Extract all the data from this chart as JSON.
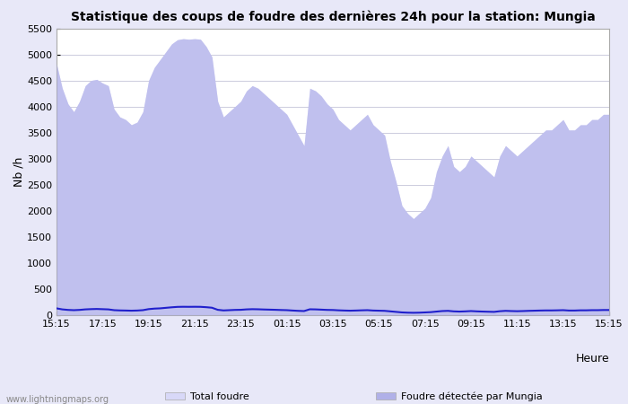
{
  "title": "Statistique des coups de foudre des dernières 24h pour la station: Mungia",
  "ylabel": "Nb /h",
  "xlabel": "Heure",
  "watermark": "www.lightningmaps.org",
  "ylim": [
    0,
    5500
  ],
  "yticks": [
    0,
    500,
    1000,
    1500,
    2000,
    2500,
    3000,
    3500,
    4000,
    4500,
    5000,
    5500
  ],
  "xtick_labels": [
    "15:15",
    "17:15",
    "19:15",
    "21:15",
    "23:15",
    "01:15",
    "03:15",
    "05:15",
    "07:15",
    "09:15",
    "11:15",
    "13:15",
    "15:15"
  ],
  "bg_color": "#e8e8f8",
  "plot_bg_color": "#ffffff",
  "grid_color": "#ccccdd",
  "fill_total_color": "#d8d8f8",
  "fill_mungia_color": "#b0b0e8",
  "line_avg_color": "#2020cc",
  "n_points": 97,
  "total_foudre": [
    4820,
    4350,
    4050,
    3900,
    4100,
    4400,
    4500,
    4520,
    4450,
    4400,
    3950,
    3800,
    3750,
    3650,
    3700,
    3900,
    4500,
    4750,
    4900,
    5050,
    5200,
    5280,
    5300,
    5290,
    5300,
    5290,
    5150,
    4950,
    4100,
    3800,
    3900,
    4000,
    4100,
    4300,
    4400,
    4350,
    4250,
    4150,
    4050,
    3950,
    3850,
    3650,
    3450,
    3250,
    4350,
    4300,
    4200,
    4050,
    3950,
    3750,
    3650,
    3550,
    3650,
    3750,
    3850,
    3650,
    3550,
    3450,
    2950,
    2550,
    2100,
    1950,
    1850,
    1950,
    2050,
    2250,
    2750,
    3050,
    3250,
    2850,
    2750,
    2850,
    3050,
    2950,
    2850,
    2750,
    2650,
    3050,
    3250,
    3150,
    3050,
    3150,
    3250,
    3350,
    3450,
    3550,
    3550,
    3650,
    3750,
    3550,
    3550,
    3650,
    3650,
    3750,
    3750,
    3850,
    3850
  ],
  "mungia_foudre": [
    4820,
    4350,
    4050,
    3900,
    4100,
    4400,
    4500,
    4520,
    4450,
    4400,
    3950,
    3800,
    3750,
    3650,
    3700,
    3900,
    4500,
    4750,
    4900,
    5050,
    5200,
    5280,
    5300,
    5290,
    5300,
    5290,
    5150,
    4950,
    4100,
    3800,
    3900,
    4000,
    4100,
    4300,
    4400,
    4350,
    4250,
    4150,
    4050,
    3950,
    3850,
    3650,
    3450,
    3250,
    4350,
    4300,
    4200,
    4050,
    3950,
    3750,
    3650,
    3550,
    3650,
    3750,
    3850,
    3650,
    3550,
    3450,
    2950,
    2550,
    2100,
    1950,
    1850,
    1950,
    2050,
    2250,
    2750,
    3050,
    3250,
    2850,
    2750,
    2850,
    3050,
    2950,
    2850,
    2750,
    2650,
    3050,
    3250,
    3150,
    3050,
    3150,
    3250,
    3350,
    3450,
    3550,
    3550,
    3650,
    3750,
    3550,
    3550,
    3650,
    3650,
    3750,
    3750,
    3850,
    3850
  ],
  "avg_line": [
    130,
    110,
    100,
    95,
    100,
    110,
    115,
    118,
    114,
    110,
    95,
    90,
    88,
    85,
    88,
    95,
    115,
    125,
    130,
    140,
    150,
    158,
    160,
    159,
    160,
    159,
    152,
    142,
    102,
    90,
    95,
    100,
    102,
    110,
    114,
    112,
    108,
    105,
    102,
    98,
    95,
    88,
    82,
    78,
    112,
    110,
    105,
    100,
    98,
    92,
    88,
    85,
    88,
    92,
    95,
    88,
    85,
    82,
    72,
    62,
    52,
    47,
    45,
    47,
    52,
    57,
    68,
    78,
    82,
    72,
    68,
    72,
    78,
    72,
    68,
    65,
    62,
    75,
    82,
    78,
    75,
    78,
    82,
    85,
    88,
    90,
    90,
    92,
    95,
    88,
    88,
    92,
    92,
    95,
    95,
    98,
    98
  ]
}
